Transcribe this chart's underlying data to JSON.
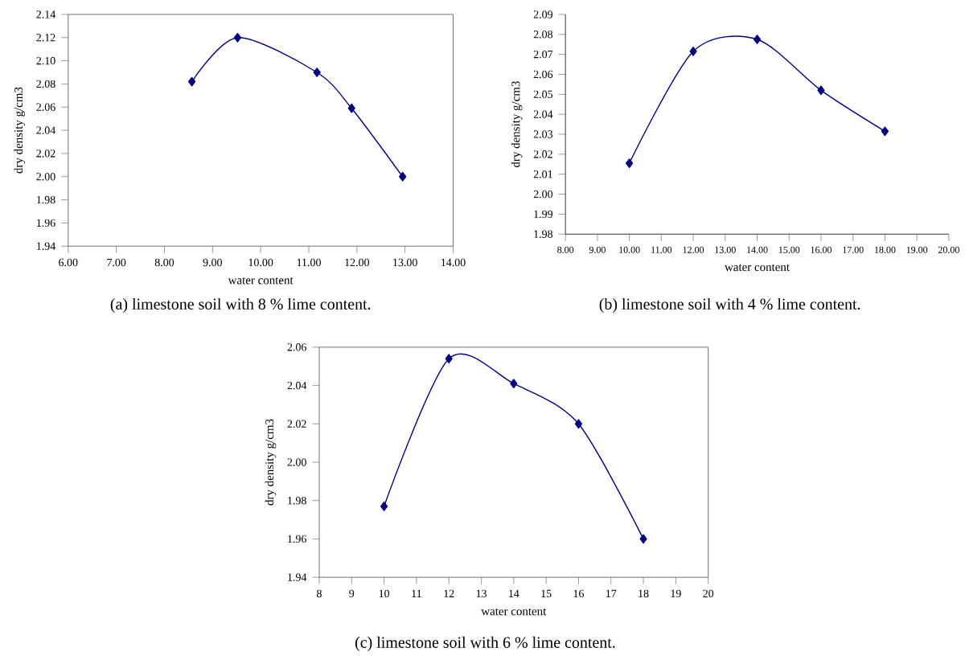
{
  "chart_data": [
    {
      "type": "line",
      "xlabel": "water content",
      "ylabel": "dry density g/cm3",
      "marker": "diamond",
      "line_style": "solid",
      "x": [
        8.57,
        9.52,
        11.17,
        11.89,
        12.95
      ],
      "values": [
        2.082,
        2.12,
        2.09,
        2.059,
        2.0
      ],
      "color": "#000080",
      "xlim": [
        6,
        14
      ],
      "ylim": [
        1.94,
        2.14
      ],
      "xticks": [
        {
          "value": 6,
          "label": "6.00"
        },
        {
          "value": 7,
          "label": "7.00"
        },
        {
          "value": 8,
          "label": "8.00"
        },
        {
          "value": 9,
          "label": "9.00"
        },
        {
          "value": 10,
          "label": "10.00"
        },
        {
          "value": 11,
          "label": "11.00"
        },
        {
          "value": 12,
          "label": "12.00"
        },
        {
          "value": 13,
          "label": "13.00"
        },
        {
          "value": 14,
          "label": "14.00"
        }
      ],
      "yticks": [
        {
          "value": 1.94,
          "label": "1.94"
        },
        {
          "value": 1.96,
          "label": "1.96"
        },
        {
          "value": 1.98,
          "label": "1.98"
        },
        {
          "value": 2.0,
          "label": "2.00"
        },
        {
          "value": 2.02,
          "label": "2.02"
        },
        {
          "value": 2.04,
          "label": "2.04"
        },
        {
          "value": 2.06,
          "label": "2.06"
        },
        {
          "value": 2.08,
          "label": "2.08"
        },
        {
          "value": 2.1,
          "label": "2.10"
        },
        {
          "value": 2.12,
          "label": "2.12"
        },
        {
          "value": 2.14,
          "label": "2.14"
        }
      ],
      "annotations": [
        "(a) limestone soil with 8 % lime content."
      ]
    },
    {
      "type": "line",
      "xlabel": "water content",
      "ylabel": "dry density g/cm3",
      "marker": "diamond",
      "line_style": "solid",
      "x": [
        10,
        12,
        14,
        16,
        18
      ],
      "values": [
        2.0155,
        2.0715,
        2.0775,
        2.052,
        2.0315
      ],
      "color": "#000080",
      "xlim": [
        8,
        20
      ],
      "ylim": [
        1.98,
        2.09
      ],
      "xticks": [
        {
          "value": 8,
          "label": "8.00"
        },
        {
          "value": 9,
          "label": "9.00"
        },
        {
          "value": 10,
          "label": "10.00"
        },
        {
          "value": 11,
          "label": "11.00"
        },
        {
          "value": 12,
          "label": "12.00"
        },
        {
          "value": 13,
          "label": "13.00"
        },
        {
          "value": 14,
          "label": "14.00"
        },
        {
          "value": 15,
          "label": "15.00"
        },
        {
          "value": 16,
          "label": "16.00"
        },
        {
          "value": 17,
          "label": "17.00"
        },
        {
          "value": 18,
          "label": "18.00"
        },
        {
          "value": 19,
          "label": "19.00"
        },
        {
          "value": 20,
          "label": "20.00"
        }
      ],
      "yticks": [
        {
          "value": 1.98,
          "label": "1.98"
        },
        {
          "value": 1.99,
          "label": "1.99"
        },
        {
          "value": 2.0,
          "label": "2.00"
        },
        {
          "value": 2.01,
          "label": "2.01"
        },
        {
          "value": 2.02,
          "label": "2.02"
        },
        {
          "value": 2.03,
          "label": "2.03"
        },
        {
          "value": 2.04,
          "label": "2.04"
        },
        {
          "value": 2.05,
          "label": "2.05"
        },
        {
          "value": 2.06,
          "label": "2.06"
        },
        {
          "value": 2.07,
          "label": "2.07"
        },
        {
          "value": 2.08,
          "label": "2.08"
        },
        {
          "value": 2.09,
          "label": "2.09"
        }
      ],
      "annotations": [
        "(b) limestone soil with 4 % lime content."
      ]
    },
    {
      "type": "line",
      "xlabel": "water content",
      "ylabel": "dry density g/cm3",
      "marker": "diamond",
      "line_style": "solid",
      "x": [
        10,
        12,
        14,
        16,
        18
      ],
      "values": [
        1.977,
        2.054,
        2.041,
        2.02,
        1.96
      ],
      "color": "#000080",
      "xlim": [
        8,
        20
      ],
      "ylim": [
        1.94,
        2.06
      ],
      "xticks": [
        8,
        9,
        10,
        11,
        12,
        13,
        14,
        15,
        16,
        17,
        18,
        19,
        20
      ],
      "yticks": [
        {
          "value": 1.94,
          "label": "1.94"
        },
        {
          "value": 1.96,
          "label": "1.96"
        },
        {
          "value": 1.98,
          "label": "1.98"
        },
        {
          "value": 2.0,
          "label": "2.00"
        },
        {
          "value": 2.02,
          "label": "2.02"
        },
        {
          "value": 2.04,
          "label": "2.04"
        },
        {
          "value": 2.06,
          "label": "2.06"
        }
      ],
      "annotations": [
        "(c) limestone soil with 6 % lime content."
      ]
    }
  ]
}
